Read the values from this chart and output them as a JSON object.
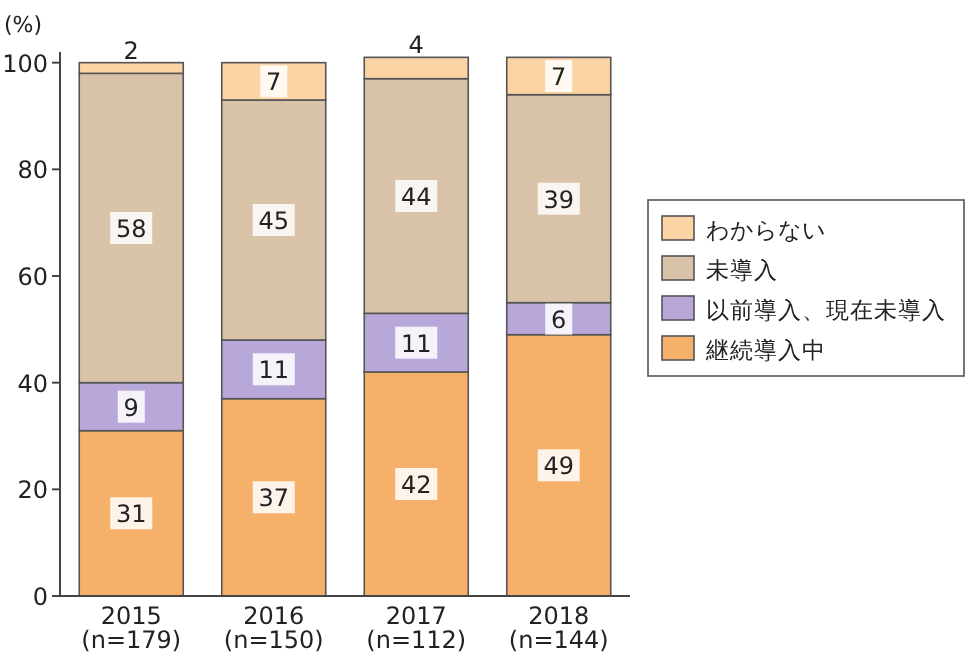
{
  "chart_data": {
    "type": "bar",
    "stacked": true,
    "ylabel": "(%)",
    "categories": [
      "2015\n(n=179)",
      "2016\n(n=150)",
      "2017\n(n=112)",
      "2018\n(n=144)"
    ],
    "ylim": [
      0,
      102
    ],
    "yticks": [
      0,
      20,
      40,
      60,
      80,
      100
    ],
    "grid": false,
    "legend": "right",
    "data_labels": true,
    "series": [
      {
        "name": "継続導入中",
        "color": "#f5b06a",
        "values": [
          31,
          37,
          42,
          49
        ]
      },
      {
        "name": "以前導入、現在未導入",
        "color": "#b8a8da",
        "values": [
          9,
          11,
          11,
          6
        ]
      },
      {
        "name": "未導入",
        "color": "#d8c2a8",
        "values": [
          58,
          45,
          44,
          39
        ]
      },
      {
        "name": "わからない",
        "color": "#fbd3a4",
        "values": [
          2,
          7,
          4,
          7
        ]
      }
    ]
  }
}
